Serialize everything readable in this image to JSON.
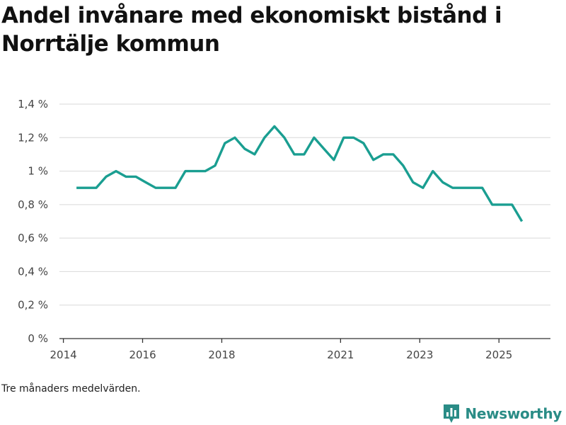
{
  "header": {
    "title": "Andel invånare med ekonomiskt bistånd i Norrtälje kommun"
  },
  "footnote": "Tre månaders medelvärden.",
  "brand": {
    "name": "Newsworthy",
    "icon": "bar-chart-badge-icon",
    "color": "#2a8c86"
  },
  "chart_data": {
    "type": "line",
    "title": "Andel invånare med ekonomiskt bistånd i Norrtälje kommun",
    "xlabel": "",
    "ylabel": "",
    "xlim": [
      2013.9,
      2026.3
    ],
    "ylim": [
      0,
      1.4
    ],
    "y_ticks": [
      0,
      0.2,
      0.4,
      0.6,
      0.8,
      1.0,
      1.2,
      1.4
    ],
    "y_tick_labels": [
      "0 %",
      "0,2 %",
      "0,4 %",
      "0,6 %",
      "0,8 %",
      "1 %",
      "1,2 %",
      "1,4 %"
    ],
    "x_ticks": [
      2014,
      2016,
      2018,
      2021,
      2023,
      2025
    ],
    "x_tick_labels": [
      "2014",
      "2016",
      "2018",
      "2021",
      "2023",
      "2025"
    ],
    "grid": true,
    "line_color": "#1a9e91",
    "series": [
      {
        "name": "Andel invånare med ekonomiskt bistånd",
        "x": [
          2014.33,
          2014.58,
          2014.83,
          2015.08,
          2015.33,
          2015.58,
          2015.83,
          2016.08,
          2016.33,
          2016.58,
          2016.83,
          2017.08,
          2017.33,
          2017.58,
          2017.83,
          2018.08,
          2018.33,
          2018.58,
          2018.83,
          2019.08,
          2019.33,
          2019.58,
          2019.83,
          2020.08,
          2020.33,
          2020.58,
          2020.83,
          2021.08,
          2021.33,
          2021.58,
          2021.83,
          2022.08,
          2022.33,
          2022.58,
          2022.83,
          2023.08,
          2023.33,
          2023.58,
          2023.83,
          2024.08,
          2024.33,
          2024.58,
          2024.83,
          2025.08,
          2025.33,
          2025.58
        ],
        "values": [
          0.9,
          0.9,
          0.9,
          0.967,
          1.0,
          0.967,
          0.967,
          0.933,
          0.9,
          0.9,
          0.9,
          1.0,
          1.0,
          1.0,
          1.033,
          1.167,
          1.2,
          1.133,
          1.1,
          1.2,
          1.267,
          1.2,
          1.1,
          1.1,
          1.2,
          1.133,
          1.067,
          1.2,
          1.2,
          1.167,
          1.067,
          1.1,
          1.1,
          1.033,
          0.933,
          0.9,
          1.0,
          0.933,
          0.9,
          0.9,
          0.9,
          0.9,
          0.8,
          0.8,
          0.8,
          0.7
        ]
      }
    ]
  }
}
